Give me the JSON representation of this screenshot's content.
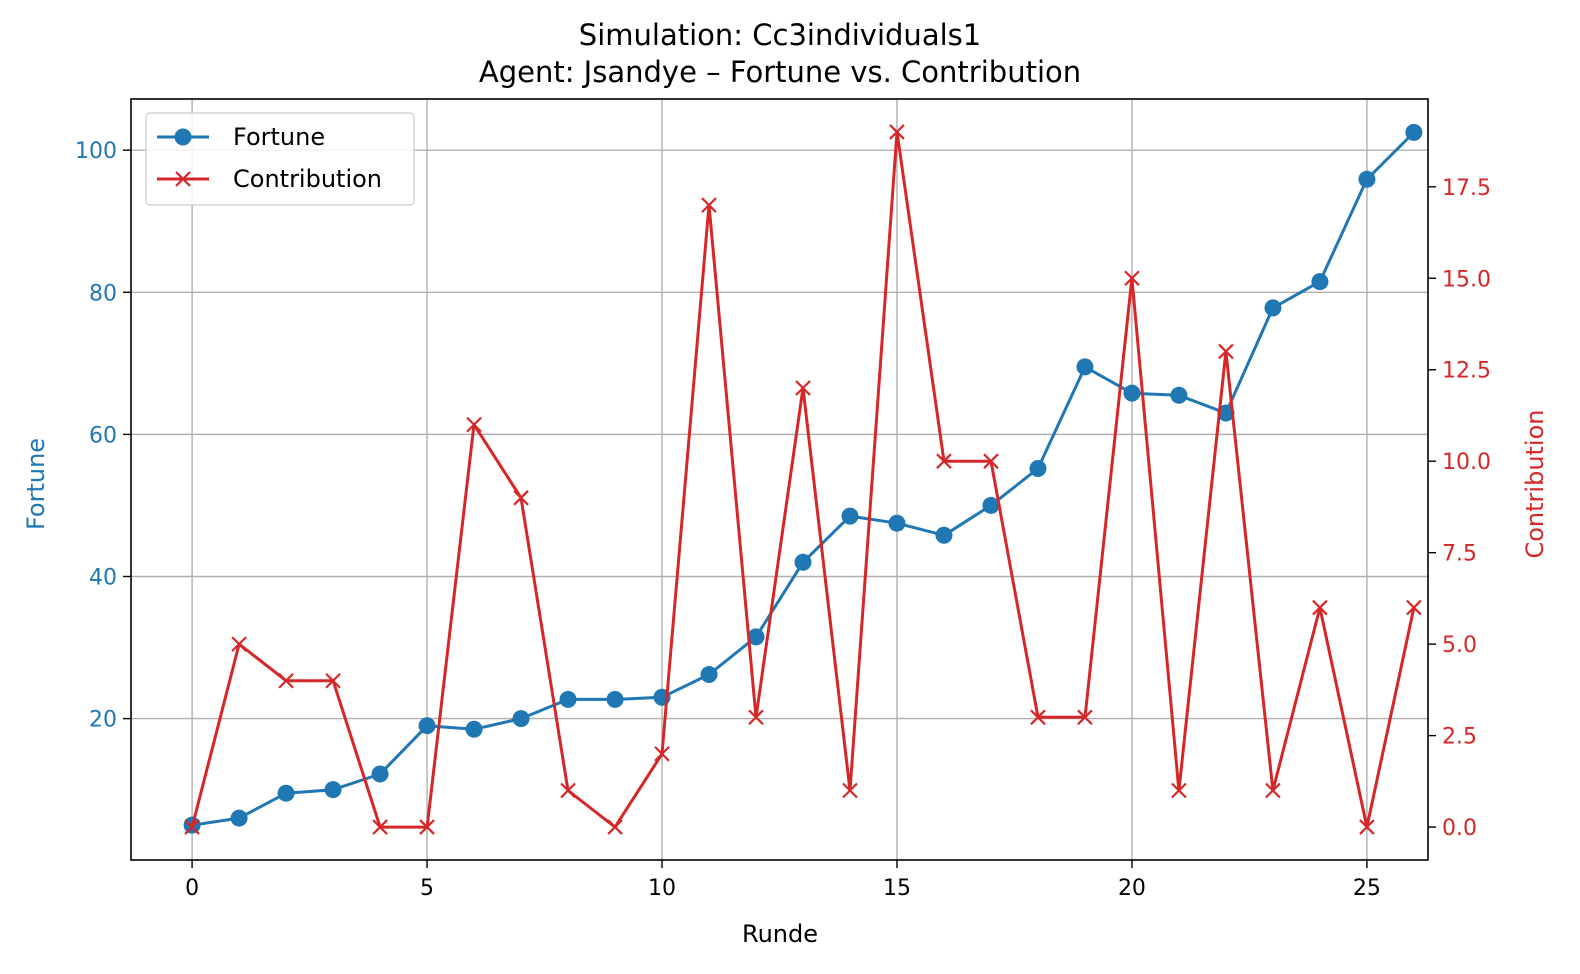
{
  "chart_data": {
    "type": "line",
    "title": "Simulation: Cc3individuals1",
    "subtitle": "Agent: Jsandye – Fortune vs. Contribution",
    "xlabel": "Runde",
    "ylabel_left": "Fortune",
    "ylabel_right": "Contribution",
    "xlim": [
      -1.3,
      26.3
    ],
    "ylim_left": [
      0.1,
      107.2
    ],
    "ylim_right": [
      -0.9,
      19.9
    ],
    "x_ticks": [
      "0",
      "5",
      "10",
      "15",
      "20",
      "25"
    ],
    "y_ticks_left": [
      "20",
      "40",
      "60",
      "80",
      "100"
    ],
    "y_ticks_right": [
      "0.0",
      "2.5",
      "5.0",
      "7.5",
      "10.0",
      "12.5",
      "15.0",
      "17.5"
    ],
    "grid": true,
    "legend_position": "top-left",
    "x": [
      0,
      1,
      2,
      3,
      4,
      5,
      6,
      7,
      8,
      9,
      10,
      11,
      12,
      13,
      14,
      15,
      16,
      17,
      18,
      19,
      20,
      21,
      22,
      23,
      24,
      25,
      26
    ],
    "series": [
      {
        "name": "Fortune",
        "axis": "left",
        "color": "#1f77b4",
        "marker": "circle",
        "values": [
          5.0,
          6.0,
          9.5,
          10.0,
          12.2,
          19.0,
          18.5,
          20.0,
          22.7,
          22.7,
          23.0,
          26.2,
          31.5,
          42.0,
          48.5,
          47.5,
          45.8,
          50.0,
          55.2,
          69.5,
          65.8,
          65.5,
          63.0,
          77.8,
          81.5,
          95.9,
          102.5
        ]
      },
      {
        "name": "Contribution",
        "axis": "right",
        "color": "#d62728",
        "marker": "x",
        "values": [
          0,
          5,
          4,
          4,
          0,
          0,
          11,
          9,
          1,
          0,
          2,
          17,
          3,
          12,
          1,
          19,
          10,
          10,
          3,
          3,
          15,
          1,
          13,
          1,
          6,
          0,
          6
        ]
      }
    ]
  }
}
